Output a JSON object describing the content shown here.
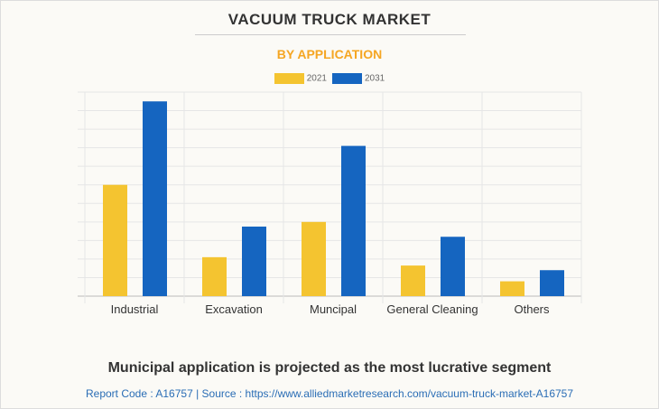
{
  "chart_data": {
    "type": "bar",
    "title": "VACUUM TRUCK MARKET",
    "subtitle": "BY APPLICATION",
    "categories": [
      "Industrial",
      "Excavation",
      "Muncipal",
      "General Cleaning",
      "Others"
    ],
    "series": [
      {
        "name": "2021",
        "color": "#f4c430",
        "values": [
          6.0,
          2.1,
          4.0,
          1.65,
          0.8
        ]
      },
      {
        "name": "2031",
        "color": "#1565c0",
        "values": [
          10.5,
          3.75,
          8.1,
          3.2,
          1.4
        ]
      }
    ],
    "ylim": [
      0,
      11
    ],
    "xlabel": "",
    "ylabel": "",
    "grid": true,
    "legend": "top-center"
  },
  "footer": {
    "headline": "Municipal application is projected as the most lucrative segment",
    "source": "Report Code : A16757  |  Source : https://www.alliedmarketresearch.com/vacuum-truck-market-A16757"
  }
}
